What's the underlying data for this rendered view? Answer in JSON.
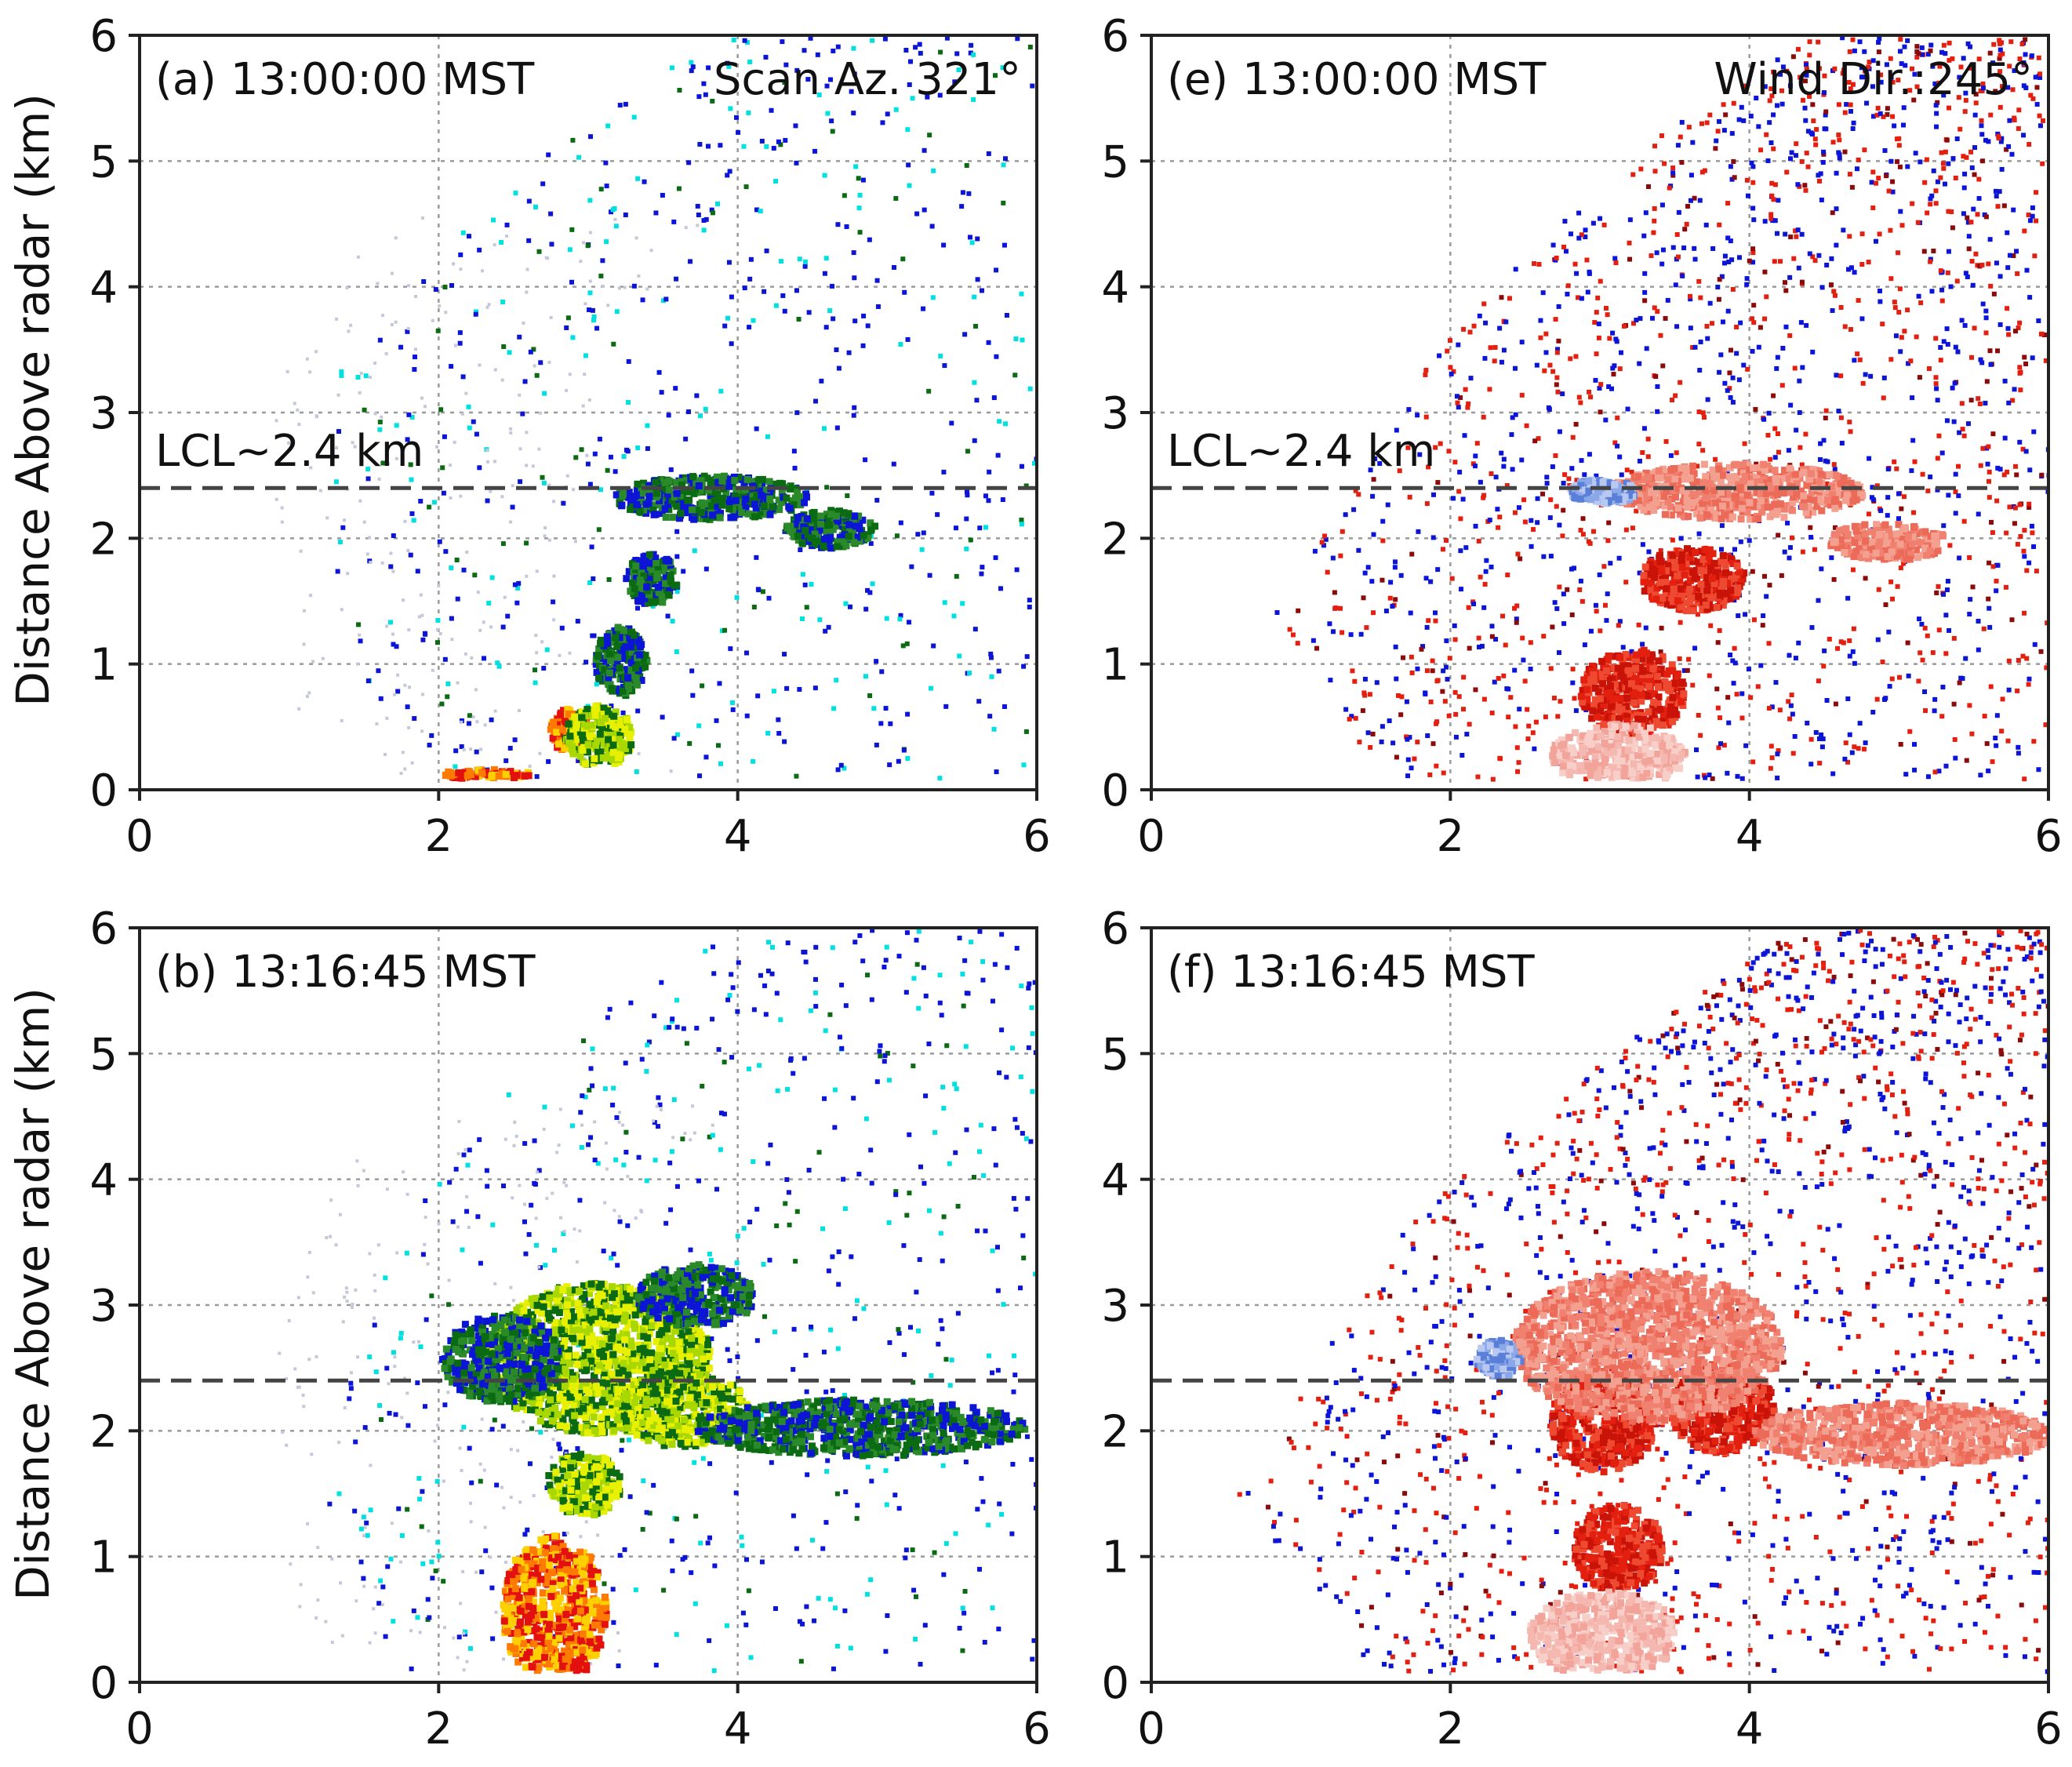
{
  "figure": {
    "ylabel": "Distance Above radar  (km)",
    "lcl_label": "LCL~2.4 km"
  },
  "chart_data": [
    {
      "type": "scatter",
      "id": "a",
      "title": "(a) 13:00:00 MST",
      "annotation": "Scan Az. 321°",
      "field": "reflectivity",
      "xlim": [
        0,
        6
      ],
      "ylim": [
        0,
        6
      ],
      "xticks": [
        "0",
        "2",
        "4",
        "6"
      ],
      "yticks": [
        "0",
        "1",
        "2",
        "3",
        "4",
        "5",
        "6"
      ],
      "xlabel": "",
      "ylabel": "Distance Above radar  (km)",
      "lcl_km": 2.4,
      "scan_edge": [
        [
          2.0,
          0.1
        ],
        [
          1.3,
          1.2
        ],
        [
          1.3,
          3.3
        ],
        [
          2.4,
          4.8
        ],
        [
          3.8,
          6.0
        ]
      ],
      "plume": [
        {
          "x": 2.3,
          "y": 0.15,
          "w": 0.6,
          "h": 0.08,
          "level": 3
        },
        {
          "x": 2.85,
          "y": 0.5,
          "w": 0.25,
          "h": 0.35,
          "level": 3
        },
        {
          "x": 3.05,
          "y": 0.45,
          "w": 0.45,
          "h": 0.5,
          "level": 2
        },
        {
          "x": 3.2,
          "y": 1.05,
          "w": 0.35,
          "h": 0.55,
          "level": 1
        },
        {
          "x": 3.4,
          "y": 1.7,
          "w": 0.35,
          "h": 0.4,
          "level": 1
        },
        {
          "x": 3.8,
          "y": 2.35,
          "w": 1.3,
          "h": 0.35,
          "level": 1
        },
        {
          "x": 4.6,
          "y": 2.1,
          "w": 0.6,
          "h": 0.3,
          "level": 1
        }
      ],
      "colors": [
        "#0c14d6",
        "#00e0e0",
        "#0b6b12"
      ]
    },
    {
      "type": "scatter",
      "id": "e",
      "title": "(e) 13:00:00 MST",
      "annotation": "Wind Dir.:245°",
      "field": "velocity",
      "xlim": [
        0,
        6
      ],
      "ylim": [
        0,
        6
      ],
      "xticks": [
        "0",
        "2",
        "4",
        "6"
      ],
      "yticks": [
        "0",
        "1",
        "2",
        "3",
        "4",
        "5",
        "6"
      ],
      "xlabel": "",
      "lcl_km": 2.4,
      "scan_edge": [
        [
          1.55,
          0.05
        ],
        [
          0.8,
          1.4
        ],
        [
          1.8,
          3.4
        ],
        [
          3.1,
          5.0
        ],
        [
          4.4,
          6.0
        ]
      ],
      "plume": [
        {
          "x": 3.2,
          "y": 0.8,
          "w": 0.7,
          "h": 0.7,
          "level": 3
        },
        {
          "x": 3.6,
          "y": 1.7,
          "w": 0.7,
          "h": 0.5,
          "level": 3
        },
        {
          "x": 3.9,
          "y": 2.4,
          "w": 1.7,
          "h": 0.45,
          "level": 2
        },
        {
          "x": 3.1,
          "y": 0.3,
          "w": 0.9,
          "h": 0.5,
          "level": 1
        },
        {
          "x": 4.9,
          "y": 2.0,
          "w": 0.8,
          "h": 0.3,
          "level": 2
        },
        {
          "x": 3.0,
          "y": 2.4,
          "w": 0.45,
          "h": 0.2,
          "level": -1
        }
      ],
      "colors": [
        "#0c14d6",
        "#e32010",
        "#f08070"
      ]
    },
    {
      "type": "scatter",
      "id": "b",
      "title": "(b) 13:16:45 MST",
      "annotation": "",
      "field": "reflectivity",
      "xlim": [
        0,
        6
      ],
      "ylim": [
        0,
        6
      ],
      "xticks": [
        "0",
        "2",
        "4",
        "6"
      ],
      "yticks": [
        "0",
        "1",
        "2",
        "3",
        "4",
        "5",
        "6"
      ],
      "xlabel": "",
      "ylabel": "Distance Above radar  (km)",
      "lcl_km": 2.4,
      "scan_edge": [
        [
          1.7,
          0.1
        ],
        [
          1.2,
          1.5
        ],
        [
          1.6,
          3.5
        ],
        [
          2.6,
          5.0
        ],
        [
          3.9,
          6.0
        ]
      ],
      "plume": [
        {
          "x": 2.75,
          "y": 0.6,
          "w": 0.7,
          "h": 1.2,
          "level": 3
        },
        {
          "x": 2.95,
          "y": 1.6,
          "w": 0.5,
          "h": 0.5,
          "level": 2
        },
        {
          "x": 3.05,
          "y": 2.6,
          "w": 1.5,
          "h": 1.2,
          "level": 2
        },
        {
          "x": 3.6,
          "y": 2.2,
          "w": 0.9,
          "h": 0.6,
          "level": 2
        },
        {
          "x": 2.4,
          "y": 2.6,
          "w": 0.8,
          "h": 0.7,
          "level": 1
        },
        {
          "x": 4.8,
          "y": 2.05,
          "w": 2.2,
          "h": 0.45,
          "level": 1
        },
        {
          "x": 3.7,
          "y": 3.1,
          "w": 0.8,
          "h": 0.5,
          "level": 1
        }
      ],
      "colors": [
        "#0c14d6",
        "#00e0e0",
        "#0b6b12"
      ]
    },
    {
      "type": "scatter",
      "id": "f",
      "title": "(f) 13:16:45 MST",
      "annotation": "",
      "field": "velocity",
      "xlim": [
        0,
        6
      ],
      "ylim": [
        0,
        6
      ],
      "xticks": [
        "0",
        "2",
        "4",
        "6"
      ],
      "yticks": [
        "0",
        "1",
        "2",
        "3",
        "4",
        "5",
        "6"
      ],
      "xlabel": "",
      "lcl_km": 2.4,
      "scan_edge": [
        [
          1.5,
          0.05
        ],
        [
          0.55,
          1.5
        ],
        [
          1.7,
          3.7
        ],
        [
          3.0,
          5.0
        ],
        [
          4.3,
          6.0
        ]
      ],
      "plume": [
        {
          "x": 3.0,
          "y": 2.1,
          "w": 0.7,
          "h": 0.8,
          "level": 3
        },
        {
          "x": 3.8,
          "y": 2.2,
          "w": 0.7,
          "h": 0.7,
          "level": 3
        },
        {
          "x": 3.3,
          "y": 2.7,
          "w": 1.8,
          "h": 1.2,
          "level": 2
        },
        {
          "x": 3.1,
          "y": 1.1,
          "w": 0.6,
          "h": 0.7,
          "level": 3
        },
        {
          "x": 3.0,
          "y": 0.4,
          "w": 1.0,
          "h": 0.7,
          "level": 1
        },
        {
          "x": 5.0,
          "y": 2.0,
          "w": 2.0,
          "h": 0.5,
          "level": 2
        },
        {
          "x": 2.3,
          "y": 2.6,
          "w": 0.3,
          "h": 0.3,
          "level": -1
        }
      ],
      "colors": [
        "#0c14d6",
        "#e32010",
        "#f08070"
      ]
    }
  ]
}
